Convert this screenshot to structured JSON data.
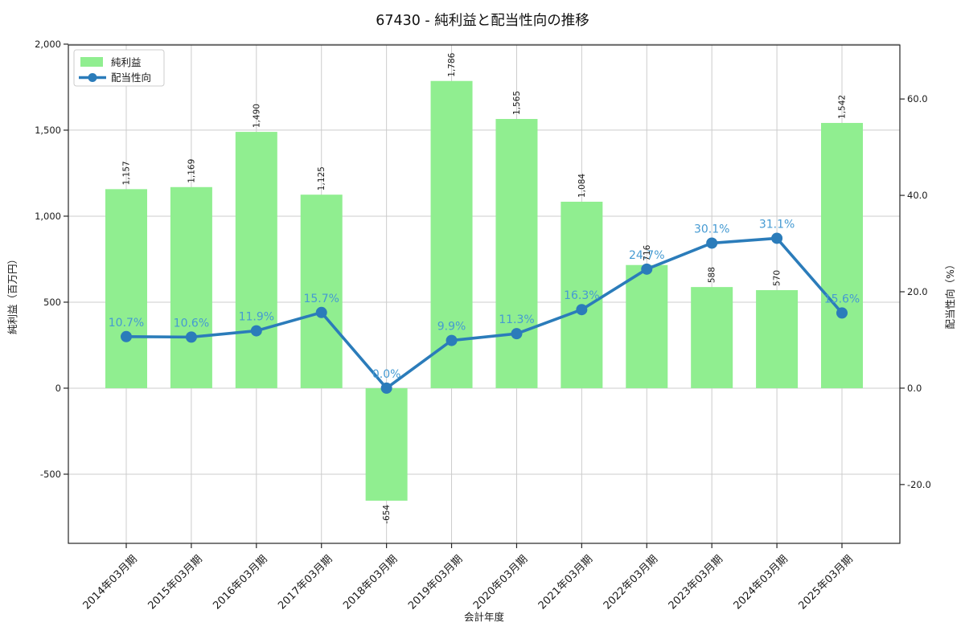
{
  "chart_data": {
    "type": "bar+line",
    "title": "67430 - 純利益と配当性向の推移",
    "xlabel": "会計年度",
    "ylabel_left": "純利益（百万円）",
    "ylabel_right": "配当性向（%）",
    "grid": true,
    "legend_position": "upper left",
    "categories": [
      "2014年03月期",
      "2015年03月期",
      "2016年03月期",
      "2017年03月期",
      "2018年03月期",
      "2019年03月期",
      "2020年03月期",
      "2021年03月期",
      "2022年03月期",
      "2023年03月期",
      "2024年03月期",
      "2025年03月期"
    ],
    "series": [
      {
        "name": "純利益",
        "type": "bar",
        "axis": "left",
        "values": [
          1157,
          1169,
          1490,
          1125,
          -654,
          1786,
          1565,
          1084,
          716,
          588,
          570,
          1542
        ],
        "labels": [
          "1,157",
          "1,169",
          "1,490",
          "1,125",
          "-654",
          "1,786",
          "1,565",
          "1,084",
          "716",
          "588",
          "570",
          "1,542"
        ]
      },
      {
        "name": "配当性向",
        "type": "line",
        "axis": "right",
        "values": [
          10.7,
          10.6,
          11.9,
          15.7,
          0.0,
          9.9,
          11.3,
          16.3,
          24.7,
          30.1,
          31.1,
          15.6
        ],
        "labels": [
          "10.7%",
          "10.6%",
          "11.9%",
          "15.7%",
          "0.0%",
          "9.9%",
          "11.3%",
          "16.3%",
          "24.7%",
          "30.1%",
          "31.1%",
          "15.6%"
        ]
      }
    ],
    "axis_left": {
      "label": "純利益（百万円）",
      "tick_values": [
        2000,
        1500,
        1000,
        500,
        0,
        -500
      ],
      "tick_labels": [
        "2,000",
        "1,500",
        "1,000",
        "500",
        "0",
        "-500"
      ],
      "lim": [
        -902,
        1995
      ]
    },
    "axis_right": {
      "label": "配当性向（%）",
      "tick_values": [
        60,
        40,
        20,
        0,
        -20
      ],
      "tick_labels": [
        "60.0",
        "40.0",
        "20.0",
        "0.0",
        "-20.0"
      ],
      "lim": [
        -32.2,
        71.2
      ]
    },
    "legend": {
      "bar_label": "純利益",
      "line_label": "配当性向"
    },
    "colors": {
      "bar": "#90ee90",
      "line": "#2b7cba",
      "line_value_label": "#459ad2",
      "bar_value_label": "#1a1a1a",
      "grid": "#cccccc",
      "spine": "#262626",
      "tick_text": "#1a1a1a"
    }
  }
}
